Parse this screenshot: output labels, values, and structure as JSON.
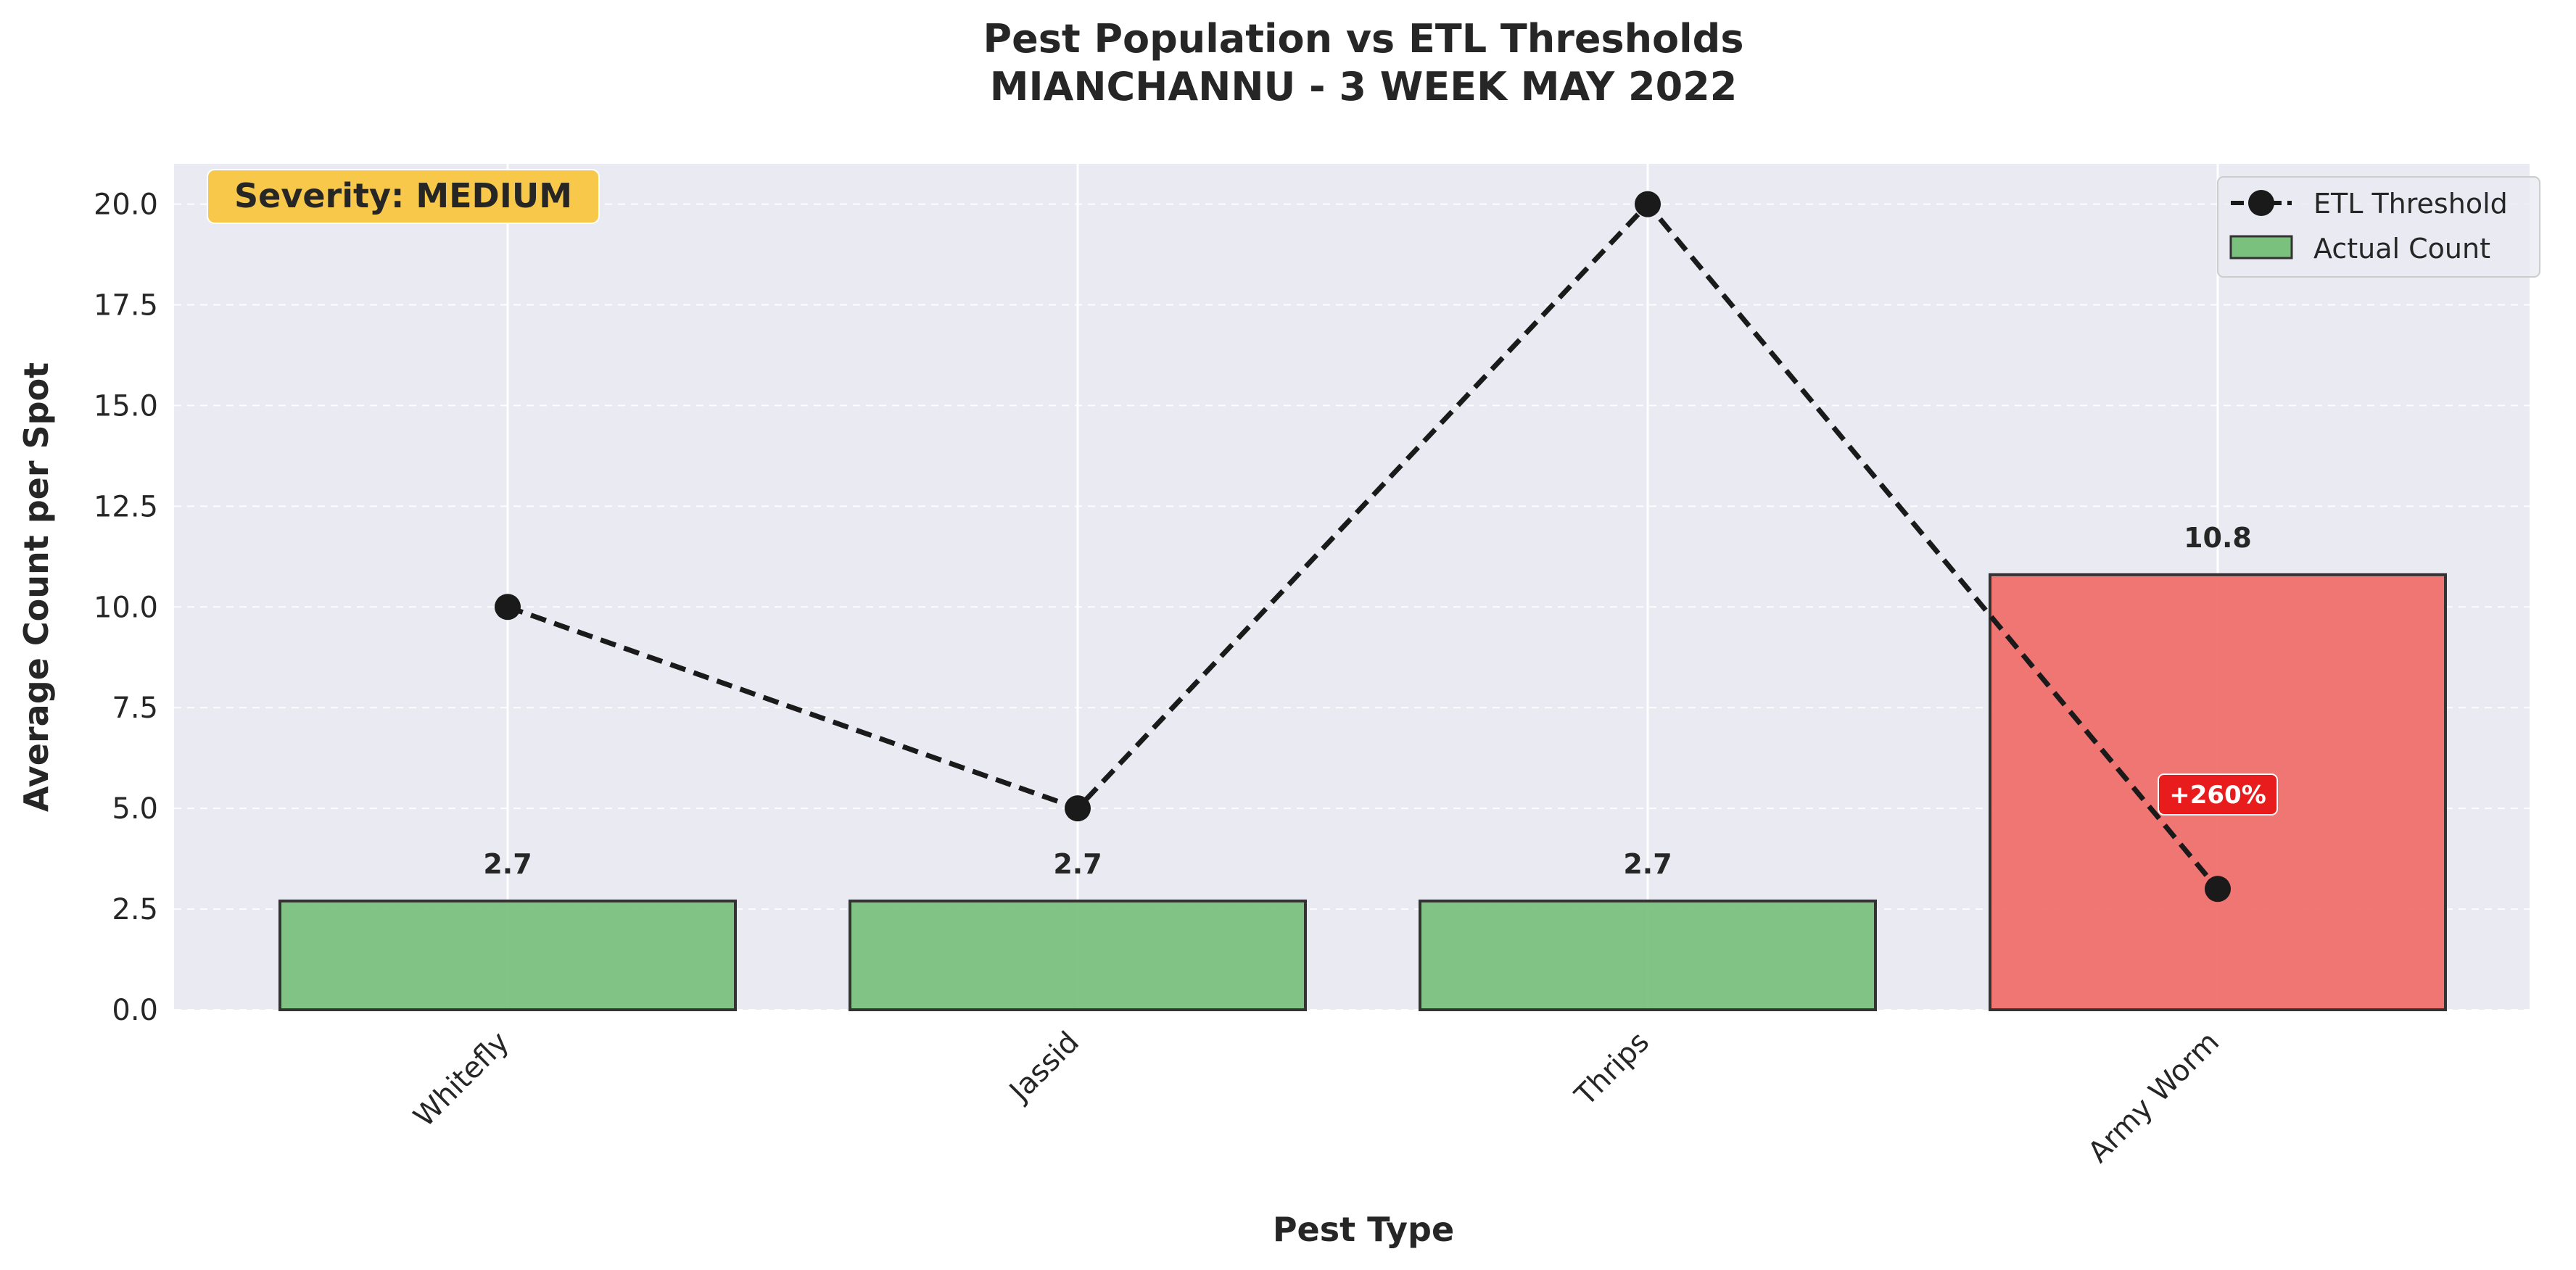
{
  "chart_data": {
    "type": "bar",
    "title_line1": "Pest Population vs ETL Thresholds",
    "title_line2": "MIANCHANNU - 3 WEEK MAY 2022",
    "xlabel": "Pest Type",
    "ylabel": "Average Count per Spot",
    "categories": [
      "Whitefly",
      "Jassid",
      "Thrips",
      "Army Worm"
    ],
    "ylim": [
      0,
      21
    ],
    "yticks": [
      0,
      2.5,
      5,
      7.5,
      10,
      12.5,
      15,
      17.5,
      20
    ],
    "ytick_labels": [
      "0.0",
      "2.5",
      "5.0",
      "7.5",
      "10.0",
      "12.5",
      "15.0",
      "17.5",
      "20.0"
    ],
    "grid": true,
    "series": [
      {
        "name": "Actual Count",
        "type": "bar",
        "values": [
          2.7,
          2.7,
          2.7,
          10.8
        ],
        "value_labels": [
          "2.7",
          "2.7",
          "2.7",
          "10.8"
        ],
        "colors": [
          "#7bc17e",
          "#7bc17e",
          "#7bc17e",
          "#f0706b"
        ]
      },
      {
        "name": "ETL Threshold",
        "type": "line",
        "style": "dashed",
        "marker": "circle",
        "values": [
          10,
          5,
          20,
          3
        ],
        "color": "#1a1a1a"
      }
    ],
    "legend": {
      "placement": "top-right",
      "entries": [
        "ETL Threshold",
        "Actual Count"
      ]
    },
    "annotations": {
      "severity": "Severity: MEDIUM",
      "severity_color": "#f8c84a",
      "exceedance": {
        "category": "Army Worm",
        "text": "+260%",
        "color": "#e81c1c"
      }
    },
    "colors": {
      "plot_bg": "#eaeaf2",
      "ok_bar": "#7bc17e",
      "exceed_bar": "#f0706b",
      "bar_edge": "#333333"
    }
  }
}
